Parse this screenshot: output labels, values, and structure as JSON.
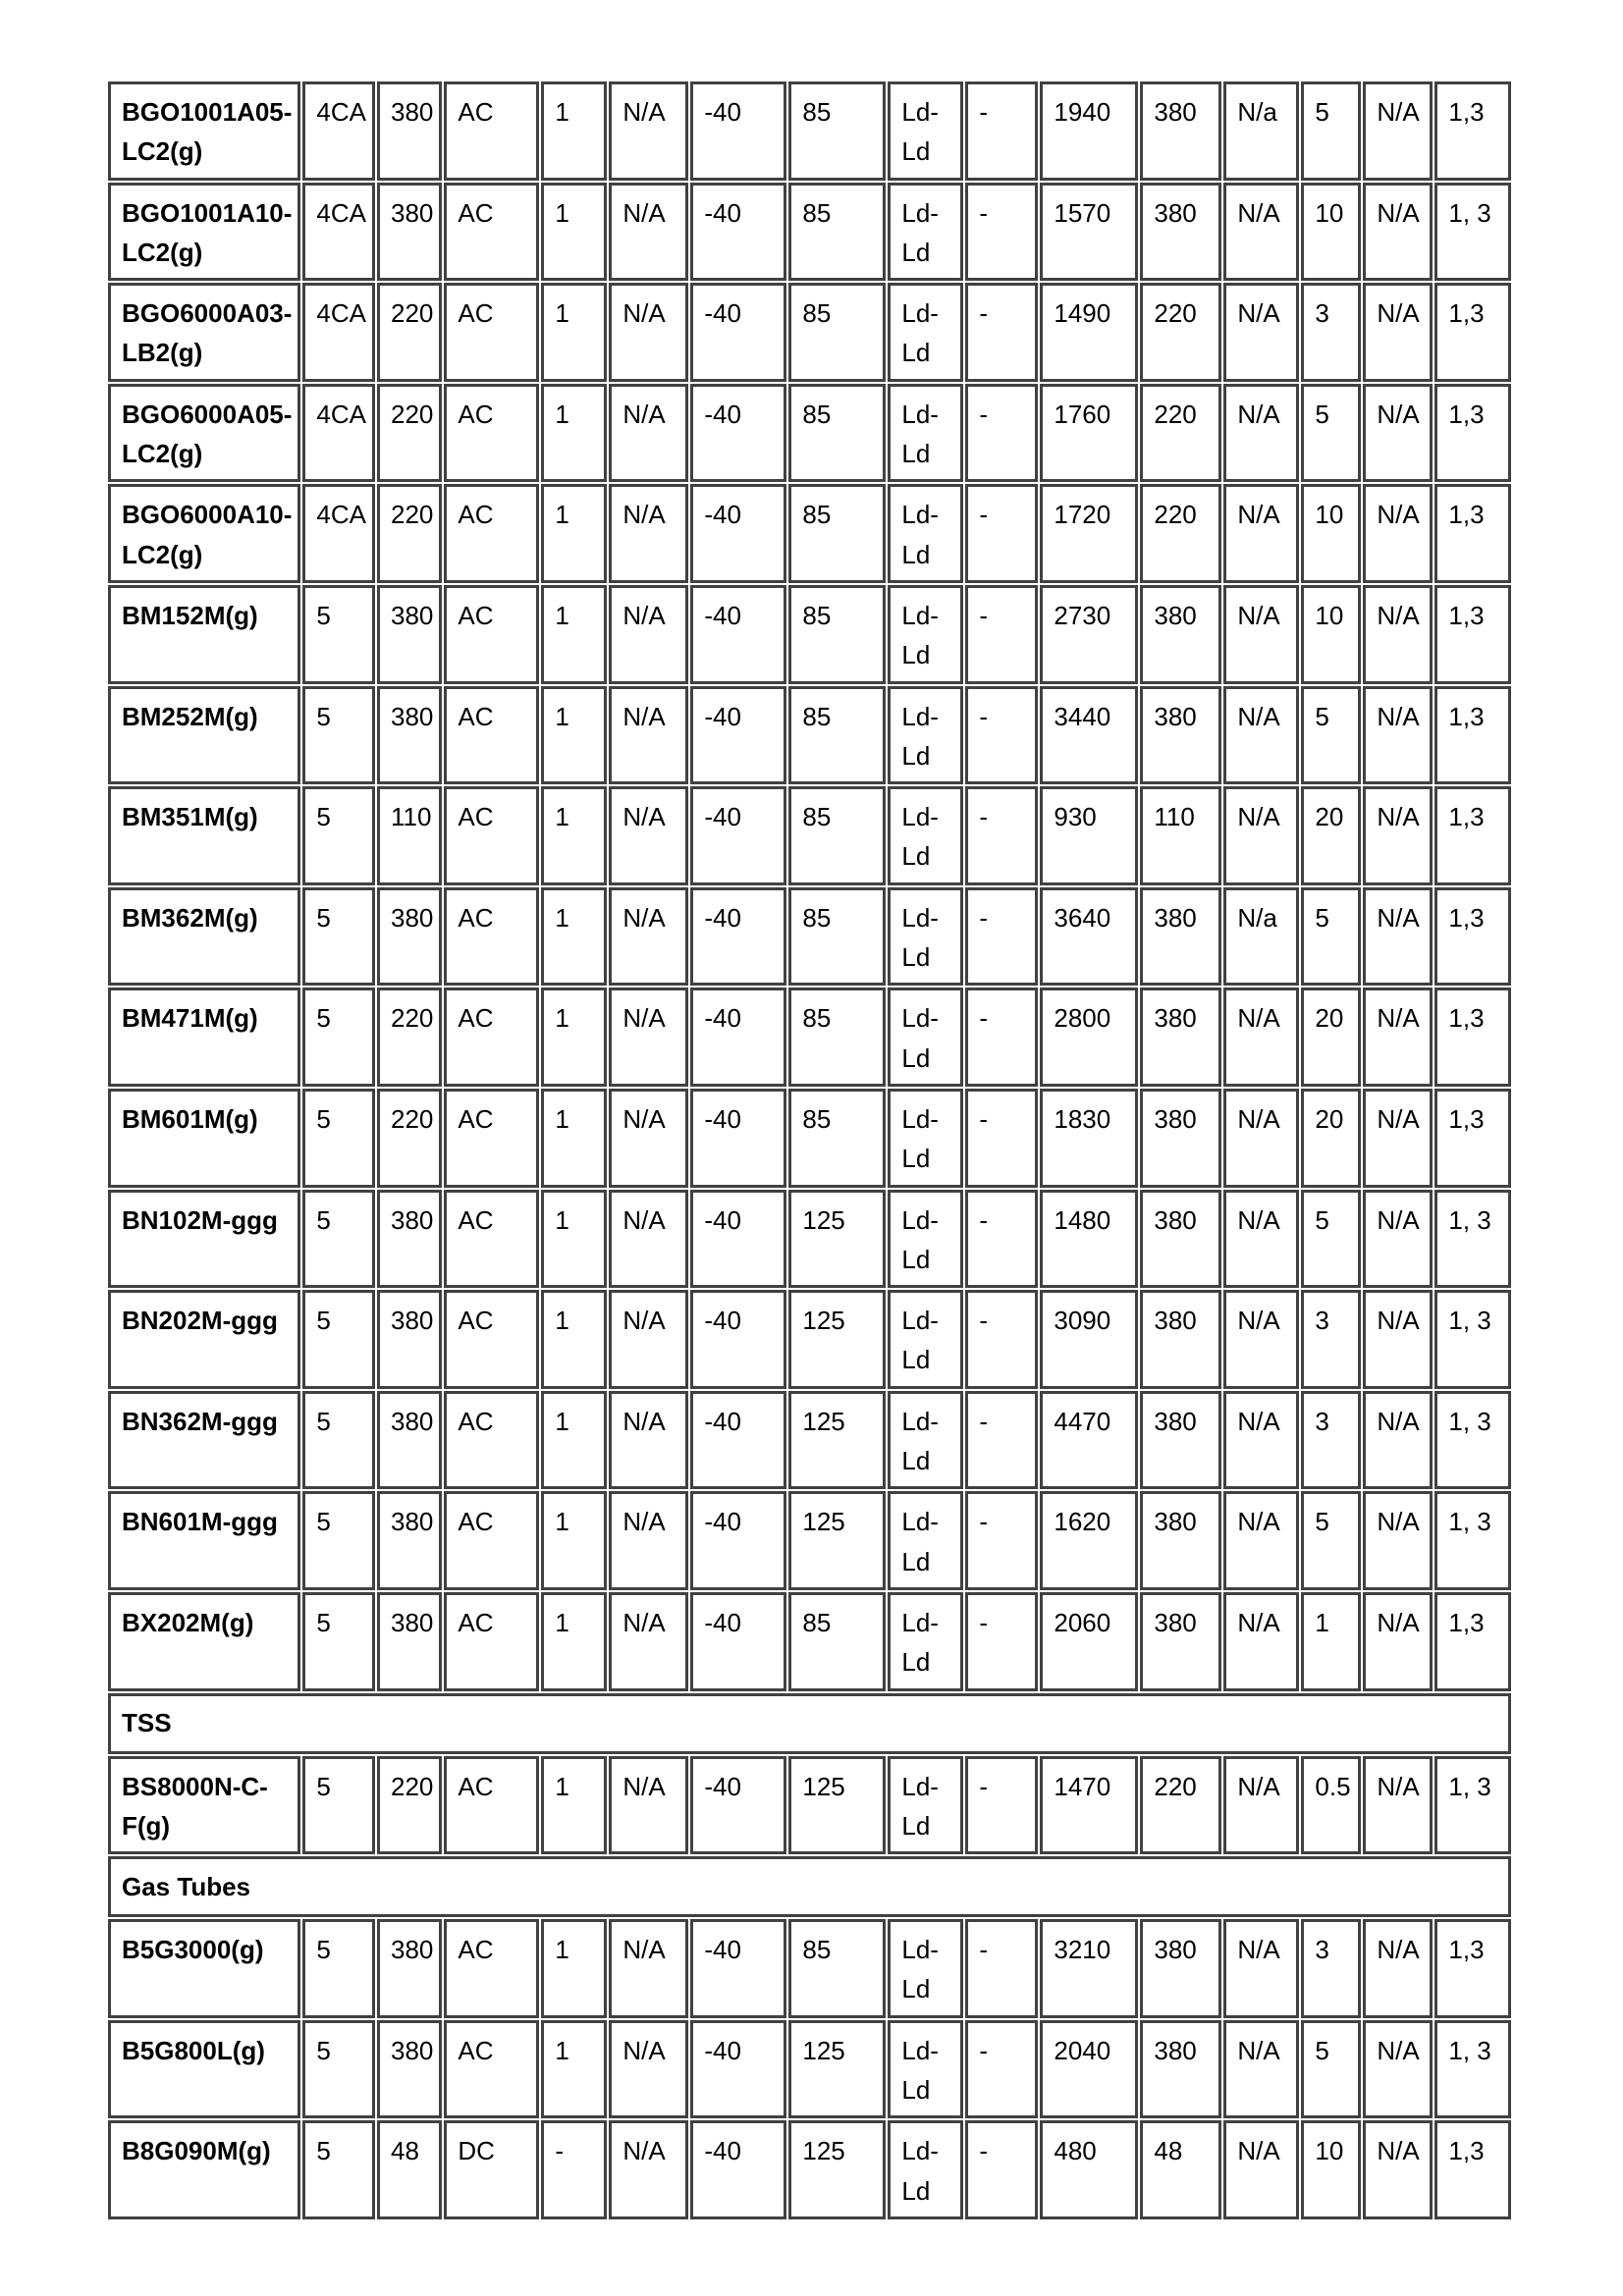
{
  "table": {
    "border_color": "#414141",
    "text_color": "#000000",
    "rows": [
      {
        "type": "data",
        "cells": [
          "BGO1001A05-LC2(g)",
          "4CA",
          "380",
          "AC",
          "1",
          "N/A",
          "-40",
          "85",
          "Ld-Ld",
          "-",
          "1940",
          "380",
          "N/a",
          "5",
          "N/A",
          "1,3"
        ]
      },
      {
        "type": "data",
        "cells": [
          "BGO1001A10-LC2(g)",
          "4CA",
          "380",
          "AC",
          "1",
          "N/A",
          "-40",
          "85",
          "Ld-Ld",
          "-",
          "1570",
          "380",
          "N/A",
          "10",
          "N/A",
          "1, 3"
        ]
      },
      {
        "type": "data",
        "cells": [
          "BGO6000A03-LB2(g)",
          "4CA",
          "220",
          "AC",
          "1",
          "N/A",
          "-40",
          "85",
          "Ld-Ld",
          "-",
          "1490",
          "220",
          "N/A",
          "3",
          "N/A",
          "1,3"
        ]
      },
      {
        "type": "data",
        "cells": [
          "BGO6000A05-LC2(g)",
          "4CA",
          "220",
          "AC",
          "1",
          "N/A",
          "-40",
          "85",
          "Ld-Ld",
          "-",
          "1760",
          "220",
          "N/A",
          "5",
          "N/A",
          "1,3"
        ]
      },
      {
        "type": "data",
        "cells": [
          "BGO6000A10-LC2(g)",
          "4CA",
          "220",
          "AC",
          "1",
          "N/A",
          "-40",
          "85",
          "Ld-Ld",
          "-",
          "1720",
          "220",
          "N/A",
          "10",
          "N/A",
          "1,3"
        ]
      },
      {
        "type": "data",
        "cells": [
          "BM152M(g)",
          "5",
          "380",
          "AC",
          "1",
          "N/A",
          "-40",
          "85",
          "Ld-Ld",
          "-",
          "2730",
          "380",
          "N/A",
          "10",
          "N/A",
          "1,3"
        ]
      },
      {
        "type": "data",
        "cells": [
          "BM252M(g)",
          "5",
          "380",
          "AC",
          "1",
          "N/A",
          "-40",
          "85",
          "Ld-Ld",
          "-",
          "3440",
          "380",
          "N/A",
          "5",
          "N/A",
          "1,3"
        ]
      },
      {
        "type": "data",
        "cells": [
          "BM351M(g)",
          "5",
          "110",
          "AC",
          "1",
          "N/A",
          "-40",
          "85",
          "Ld-Ld",
          "-",
          "930",
          "110",
          "N/A",
          "20",
          "N/A",
          "1,3"
        ]
      },
      {
        "type": "data",
        "cells": [
          "BM362M(g)",
          "5",
          "380",
          "AC",
          "1",
          "N/A",
          "-40",
          "85",
          "Ld-Ld",
          "-",
          "3640",
          "380",
          "N/a",
          "5",
          "N/A",
          "1,3"
        ]
      },
      {
        "type": "data",
        "cells": [
          "BM471M(g)",
          "5",
          "220",
          "AC",
          "1",
          "N/A",
          "-40",
          "85",
          "Ld-Ld",
          "-",
          "2800",
          "380",
          "N/A",
          "20",
          "N/A",
          "1,3"
        ]
      },
      {
        "type": "data",
        "cells": [
          "BM601M(g)",
          "5",
          "220",
          "AC",
          "1",
          "N/A",
          "-40",
          "85",
          "Ld-Ld",
          "-",
          "1830",
          "380",
          "N/A",
          "20",
          "N/A",
          "1,3"
        ]
      },
      {
        "type": "data",
        "cells": [
          "BN102M-ggg",
          "5",
          "380",
          "AC",
          "1",
          "N/A",
          "-40",
          "125",
          "Ld-Ld",
          "-",
          "1480",
          "380",
          "N/A",
          "5",
          "N/A",
          "1, 3"
        ]
      },
      {
        "type": "data",
        "cells": [
          "BN202M-ggg",
          "5",
          "380",
          "AC",
          "1",
          "N/A",
          "-40",
          "125",
          "Ld-Ld",
          "-",
          "3090",
          "380",
          "N/A",
          "3",
          "N/A",
          "1, 3"
        ]
      },
      {
        "type": "data",
        "cells": [
          "BN362M-ggg",
          "5",
          "380",
          "AC",
          "1",
          "N/A",
          "-40",
          "125",
          "Ld-Ld",
          "-",
          "4470",
          "380",
          "N/A",
          "3",
          "N/A",
          "1, 3"
        ]
      },
      {
        "type": "data",
        "cells": [
          "BN601M-ggg",
          "5",
          "380",
          "AC",
          "1",
          "N/A",
          "-40",
          "125",
          "Ld-Ld",
          "-",
          "1620",
          "380",
          "N/A",
          "5",
          "N/A",
          "1, 3"
        ]
      },
      {
        "type": "data",
        "cells": [
          "BX202M(g)",
          "5",
          "380",
          "AC",
          "1",
          "N/A",
          "-40",
          "85",
          "Ld-Ld",
          "-",
          "2060",
          "380",
          "N/A",
          "1",
          "N/A",
          "1,3"
        ]
      },
      {
        "type": "section",
        "label": "TSS"
      },
      {
        "type": "data",
        "cells": [
          "BS8000N-C-F(g)",
          "5",
          "220",
          "AC",
          "1",
          "N/A",
          "-40",
          "125",
          "Ld-Ld",
          "-",
          "1470",
          "220",
          "N/A",
          "0.5",
          "N/A",
          "1, 3"
        ]
      },
      {
        "type": "section",
        "label": "Gas Tubes"
      },
      {
        "type": "data",
        "cells": [
          "B5G3000(g)",
          "5",
          "380",
          "AC",
          "1",
          "N/A",
          "-40",
          "85",
          "Ld-Ld",
          "-",
          "3210",
          "380",
          "N/A",
          "3",
          "N/A",
          "1,3"
        ]
      },
      {
        "type": "data",
        "cells": [
          "B5G800L(g)",
          "5",
          "380",
          "AC",
          "1",
          "N/A",
          "-40",
          "125",
          "Ld-Ld",
          "-",
          "2040",
          "380",
          "N/A",
          "5",
          "N/A",
          "1, 3"
        ]
      },
      {
        "type": "data",
        "cells": [
          "B8G090M(g)",
          "5",
          "48",
          "DC",
          "-",
          "N/A",
          "-40",
          "125",
          "Ld-Ld",
          "-",
          "480",
          "48",
          "N/A",
          "10",
          "N/A",
          "1,3"
        ]
      }
    ]
  }
}
